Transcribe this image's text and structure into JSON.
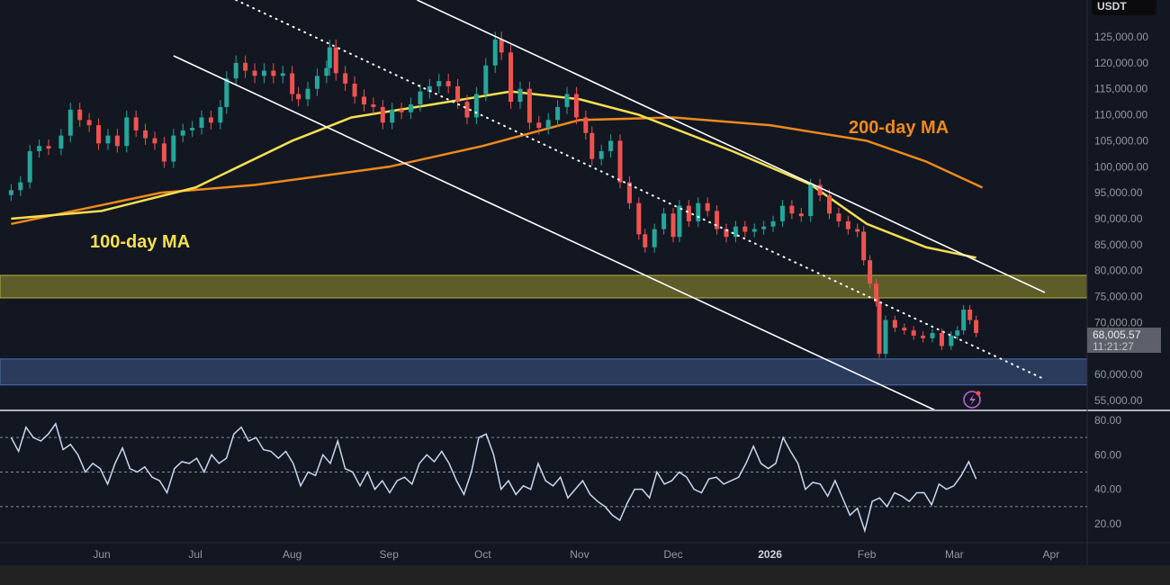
{
  "currency_label": "USDT",
  "last_price": {
    "value": "68,005.57",
    "countdown": "11:21:27"
  },
  "annotations": {
    "ma200": "200-day MA",
    "ma100": "100-day MA"
  },
  "colors": {
    "bg": "#131722",
    "up": "#26a69a",
    "down": "#ef5350",
    "ma100": "#f5e050",
    "ma200": "#f08a1c",
    "rsi": "#c9d8f0",
    "resistance_zone": "#6b6a2a",
    "support_zone": "#2f4266",
    "bolt": "#c05fd6"
  },
  "chart_data": {
    "type": "candlestick",
    "title": "",
    "price_axis": {
      "ticks": [
        125000,
        120000,
        115000,
        110000,
        105000,
        100000,
        95000,
        90000,
        85000,
        80000,
        75000,
        70000,
        60000,
        55000
      ],
      "labels": [
        "125,000.00",
        "120,000.00",
        "115,000.00",
        "110,000.00",
        "105,000.00",
        "100,000.00",
        "95,000.00",
        "90,000.00",
        "85,000.00",
        "80,000.00",
        "75,000.00",
        "70,000.00",
        "60,000.00",
        "55,000.00"
      ]
    },
    "time_axis": {
      "ticks": [
        "2025-06-01",
        "2025-07-01",
        "2025-08-01",
        "2025-09-01",
        "2025-10-01",
        "2025-11-01",
        "2025-12-01",
        "2026-01-01",
        "2026-02-01",
        "2026-03-01",
        "2026-04-01"
      ],
      "labels": [
        "Jun",
        "Jul",
        "Aug",
        "Sep",
        "Oct",
        "Nov",
        "Dec",
        "2026",
        "Feb",
        "Mar",
        "Apr"
      ]
    },
    "closes": [
      [
        "2025-05-03",
        95500
      ],
      [
        "2025-05-06",
        97000
      ],
      [
        "2025-05-09",
        103000
      ],
      [
        "2025-05-12",
        104000
      ],
      [
        "2025-05-15",
        103500
      ],
      [
        "2025-05-19",
        106000
      ],
      [
        "2025-05-22",
        111000
      ],
      [
        "2025-05-25",
        109000
      ],
      [
        "2025-05-28",
        108000
      ],
      [
        "2025-05-31",
        104500
      ],
      [
        "2025-06-03",
        106000
      ],
      [
        "2025-06-06",
        104000
      ],
      [
        "2025-06-09",
        109500
      ],
      [
        "2025-06-12",
        107000
      ],
      [
        "2025-06-15",
        105500
      ],
      [
        "2025-06-18",
        104500
      ],
      [
        "2025-06-21",
        101000
      ],
      [
        "2025-06-24",
        106000
      ],
      [
        "2025-06-27",
        107000
      ],
      [
        "2025-06-30",
        107500
      ],
      [
        "2025-07-03",
        109500
      ],
      [
        "2025-07-06",
        108500
      ],
      [
        "2025-07-09",
        111500
      ],
      [
        "2025-07-11",
        117000
      ],
      [
        "2025-07-14",
        120000
      ],
      [
        "2025-07-17",
        118500
      ],
      [
        "2025-07-20",
        117500
      ],
      [
        "2025-07-23",
        118500
      ],
      [
        "2025-07-26",
        117500
      ],
      [
        "2025-07-29",
        118000
      ],
      [
        "2025-08-01",
        114000
      ],
      [
        "2025-08-03",
        113000
      ],
      [
        "2025-08-06",
        115000
      ],
      [
        "2025-08-09",
        117500
      ],
      [
        "2025-08-12",
        119000
      ],
      [
        "2025-08-13",
        123000
      ],
      [
        "2025-08-15",
        118000
      ],
      [
        "2025-08-18",
        116000
      ],
      [
        "2025-08-21",
        113500
      ],
      [
        "2025-08-24",
        112000
      ],
      [
        "2025-08-27",
        111500
      ],
      [
        "2025-08-30",
        108500
      ],
      [
        "2025-09-02",
        111000
      ],
      [
        "2025-09-05",
        110500
      ],
      [
        "2025-09-08",
        112000
      ],
      [
        "2025-09-11",
        114500
      ],
      [
        "2025-09-14",
        115500
      ],
      [
        "2025-09-17",
        116500
      ],
      [
        "2025-09-20",
        115500
      ],
      [
        "2025-09-23",
        112500
      ],
      [
        "2025-09-26",
        109500
      ],
      [
        "2025-09-29",
        114000
      ],
      [
        "2025-10-02",
        119500
      ],
      [
        "2025-10-05",
        124500
      ],
      [
        "2025-10-07",
        122000
      ],
      [
        "2025-10-10",
        112500
      ],
      [
        "2025-10-13",
        115000
      ],
      [
        "2025-10-16",
        108500
      ],
      [
        "2025-10-19",
        107500
      ],
      [
        "2025-10-22",
        109000
      ],
      [
        "2025-10-25",
        111500
      ],
      [
        "2025-10-28",
        114000
      ],
      [
        "2025-10-31",
        109500
      ],
      [
        "2025-11-03",
        106500
      ],
      [
        "2025-11-05",
        101500
      ],
      [
        "2025-11-08",
        103000
      ],
      [
        "2025-11-11",
        105000
      ],
      [
        "2025-11-14",
        97000
      ],
      [
        "2025-11-17",
        93000
      ],
      [
        "2025-11-20",
        87000
      ],
      [
        "2025-11-22",
        84500
      ],
      [
        "2025-11-25",
        88000
      ],
      [
        "2025-11-28",
        91000
      ],
      [
        "2025-12-01",
        86500
      ],
      [
        "2025-12-03",
        92500
      ],
      [
        "2025-12-06",
        89500
      ],
      [
        "2025-12-09",
        93000
      ],
      [
        "2025-12-12",
        91500
      ],
      [
        "2025-12-15",
        88000
      ],
      [
        "2025-12-18",
        86500
      ],
      [
        "2025-12-21",
        88500
      ],
      [
        "2025-12-24",
        87500
      ],
      [
        "2025-12-27",
        88000
      ],
      [
        "2025-12-30",
        88500
      ],
      [
        "2026-01-02",
        89500
      ],
      [
        "2026-01-05",
        92500
      ],
      [
        "2026-01-08",
        91000
      ],
      [
        "2026-01-11",
        90500
      ],
      [
        "2026-01-14",
        96500
      ],
      [
        "2026-01-17",
        94500
      ],
      [
        "2026-01-20",
        91000
      ],
      [
        "2026-01-23",
        89500
      ],
      [
        "2026-01-26",
        88000
      ],
      [
        "2026-01-29",
        87500
      ],
      [
        "2026-01-31",
        82000
      ],
      [
        "2026-02-02",
        77500
      ],
      [
        "2026-02-04",
        74000
      ],
      [
        "2026-02-05",
        64000
      ],
      [
        "2026-02-07",
        70500
      ],
      [
        "2026-02-10",
        69000
      ],
      [
        "2026-02-13",
        68500
      ],
      [
        "2026-02-16",
        67500
      ],
      [
        "2026-02-19",
        67000
      ],
      [
        "2026-02-22",
        68000
      ],
      [
        "2026-02-25",
        65500
      ],
      [
        "2026-02-28",
        67500
      ],
      [
        "2026-03-02",
        68500
      ],
      [
        "2026-03-04",
        72500
      ],
      [
        "2026-03-06",
        70500
      ],
      [
        "2026-03-08",
        68005.57
      ]
    ],
    "ma100": [
      [
        "2025-05-03",
        90000
      ],
      [
        "2025-06-01",
        91500
      ],
      [
        "2025-07-01",
        96000
      ],
      [
        "2025-08-01",
        105000
      ],
      [
        "2025-08-20",
        109500
      ],
      [
        "2025-09-15",
        112000
      ],
      [
        "2025-10-10",
        114500
      ],
      [
        "2025-11-01",
        113000
      ],
      [
        "2025-11-20",
        110000
      ],
      [
        "2025-12-20",
        103000
      ],
      [
        "2026-01-14",
        96600
      ],
      [
        "2026-02-01",
        89000
      ],
      [
        "2026-02-20",
        84500
      ],
      [
        "2026-03-08",
        82500
      ]
    ],
    "ma200": [
      [
        "2025-05-03",
        89000
      ],
      [
        "2025-06-20",
        95000
      ],
      [
        "2025-07-20",
        96500
      ],
      [
        "2025-09-01",
        100000
      ],
      [
        "2025-10-01",
        104000
      ],
      [
        "2025-11-01",
        109000
      ],
      [
        "2025-12-01",
        109500
      ],
      [
        "2026-01-01",
        108000
      ],
      [
        "2026-02-01",
        105000
      ],
      [
        "2026-02-20",
        101000
      ],
      [
        "2026-03-10",
        96000
      ]
    ],
    "trendlines": [
      {
        "name": "upper-channel",
        "style": "solid",
        "from": [
          "2025-09-10",
          132100
        ],
        "to": [
          "2026-03-30",
          75800
        ]
      },
      {
        "name": "lower-channel",
        "style": "solid",
        "from": [
          "2025-06-24",
          121360
        ],
        "to": [
          "2026-02-23",
          53100
        ]
      },
      {
        "name": "mid-channel",
        "style": "dotted",
        "from": [
          "2025-07-14",
          132100
        ],
        "to": [
          "2026-03-29",
          59340
        ]
      }
    ],
    "zones": [
      {
        "name": "resistance-zone",
        "top": 79100,
        "bottom": 74760
      },
      {
        "name": "support-zone",
        "top": 63000,
        "bottom": 58000
      }
    ],
    "rsi": {
      "axis_ticks": [
        80,
        60,
        40,
        20
      ],
      "axis_labels": [
        "80.00",
        "60.00",
        "40.00",
        "20.00"
      ],
      "levels": [
        70,
        50,
        30
      ],
      "start": "2025-05-03",
      "end": "2026-03-08",
      "values": [
        70,
        62,
        76,
        70,
        68,
        72,
        78,
        63,
        66,
        60,
        50,
        55,
        52,
        43,
        55,
        64,
        52,
        50,
        53,
        47,
        45,
        38,
        52,
        56,
        55,
        58,
        50,
        60,
        55,
        58,
        72,
        76,
        68,
        70,
        63,
        62,
        58,
        62,
        55,
        42,
        50,
        48,
        60,
        55,
        68,
        52,
        50,
        42,
        50,
        40,
        45,
        38,
        45,
        47,
        43,
        55,
        60,
        56,
        62,
        55,
        45,
        37,
        50,
        70,
        72,
        60,
        40,
        45,
        37,
        42,
        40,
        55,
        45,
        42,
        47,
        35,
        40,
        45,
        37,
        33,
        30,
        25,
        22,
        32,
        40,
        40,
        35,
        50,
        43,
        45,
        50,
        47,
        40,
        38,
        46,
        47,
        43,
        45,
        47,
        55,
        65,
        55,
        52,
        55,
        70,
        62,
        55,
        40,
        44,
        43,
        36,
        45,
        35,
        25,
        29,
        16,
        33,
        35,
        30,
        38,
        36,
        33,
        38,
        38,
        31,
        43,
        40,
        42,
        48,
        56,
        46
      ]
    }
  }
}
